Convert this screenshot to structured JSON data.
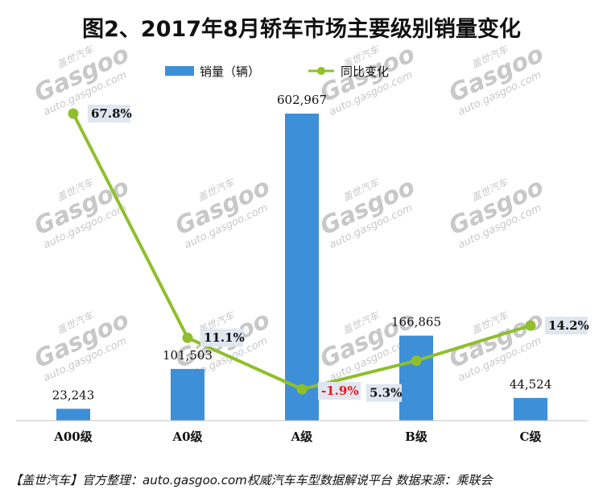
{
  "chart_data": {
    "type": "bar",
    "title": "图2、2017年8月轿车市场主要级别销量变化",
    "categories": [
      "A00级",
      "A0级",
      "A级",
      "B级",
      "C级"
    ],
    "series": [
      {
        "name": "销量（辆）",
        "type": "bar",
        "values": [
          23243,
          101503,
          602967,
          166865,
          44524
        ],
        "labels": [
          "23,243",
          "101,503",
          "602,967",
          "166,865",
          "44,524"
        ],
        "color": "#3d8fd8"
      },
      {
        "name": "同比变化",
        "type": "line",
        "values": [
          67.8,
          11.1,
          -1.9,
          5.3,
          14.2
        ],
        "labels": [
          "67.8%",
          "11.1%",
          "-1.9%",
          "5.3%",
          "14.2%"
        ],
        "color": "#8fbf2a",
        "negative_label_color": "#e8141c"
      }
    ],
    "legend_position": "top",
    "grid": false
  },
  "watermark": {
    "brand": "盖世汽车",
    "logo": "Gasgoo",
    "url": "auto.gasgoo.com"
  },
  "footer": {
    "text": "【盖世汽车】官方整理：auto.gasgoo.com权威汽车车型数据解说平台 数据来源：乘联会"
  }
}
